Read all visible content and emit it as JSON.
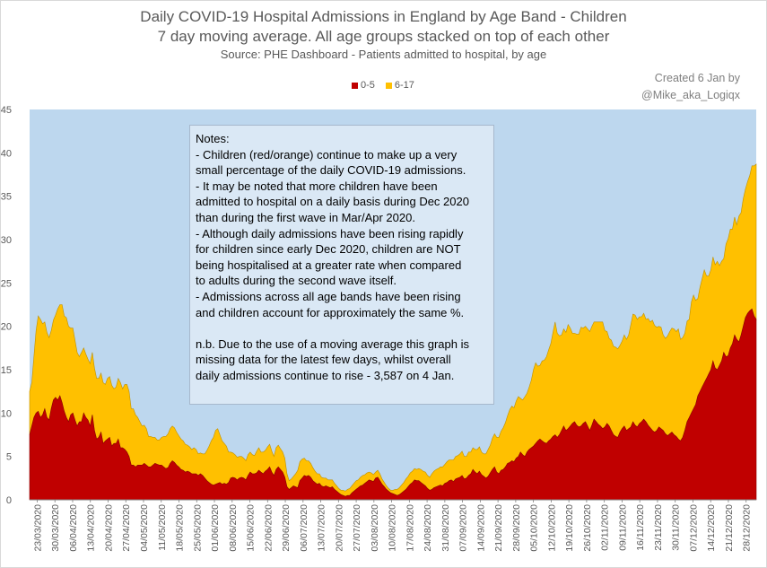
{
  "chart_data": {
    "type": "area",
    "stacked": true,
    "title": "Daily COVID-19 Hospital Admissions in England by Age Band - Children",
    "subtitle": "7 day moving average. All age groups stacked on top of each other",
    "source": "Source:  PHE Dashboard - Patients admitted to hospital, by age",
    "credit": [
      "Created 6 Jan by",
      "@Mike_aka_Logiqx"
    ],
    "ylim": [
      0,
      45
    ],
    "yticks": [
      "0",
      "5",
      "10",
      "15",
      "20",
      "25",
      "30",
      "35",
      "40",
      "45"
    ],
    "xticks": [
      "23/03/2020",
      "30/03/2020",
      "06/04/2020",
      "13/04/2020",
      "20/04/2020",
      "27/04/2020",
      "04/05/2020",
      "11/05/2020",
      "18/05/2020",
      "25/05/2020",
      "01/06/2020",
      "08/06/2020",
      "15/06/2020",
      "22/06/2020",
      "29/06/2020",
      "06/07/2020",
      "13/07/2020",
      "20/07/2020",
      "27/07/2020",
      "03/08/2020",
      "10/08/2020",
      "17/08/2020",
      "24/08/2020",
      "31/08/2020",
      "07/09/2020",
      "14/09/2020",
      "21/09/2020",
      "28/09/2020",
      "05/10/2020",
      "12/10/2020",
      "19/10/2020",
      "26/10/2020",
      "02/11/2020",
      "09/11/2020",
      "16/11/2020",
      "23/11/2020",
      "30/11/2020",
      "07/12/2020",
      "14/12/2020",
      "21/12/2020",
      "28/12/2020"
    ],
    "legend": [
      "0-5",
      "6-17"
    ],
    "legend_position": "top",
    "colors": {
      "0-5": "#c00000",
      "6-17": "#ffc000",
      "plot_bg": "#bdd7ee"
    },
    "x_start": "2020-03-20",
    "x_end": "2021-01-01",
    "series": [
      {
        "name": "0-5",
        "values": [
          7.5,
          8.5,
          9.5,
          10,
          10.2,
          9.5,
          9.8,
          10.5,
          9.5,
          9.2,
          10.5,
          11.5,
          11.8,
          11.5,
          12,
          11.2,
          10.2,
          9.5,
          9,
          9.8,
          10,
          9.2,
          8.5,
          9,
          9,
          10,
          9.5,
          9.2,
          8.5,
          9.8,
          8,
          7,
          7.2,
          7.8,
          6.5,
          6.8,
          7,
          7.2,
          6.2,
          6.5,
          6.5,
          7,
          6,
          6,
          5.8,
          5.5,
          5,
          4,
          4,
          3.8,
          4,
          4,
          4,
          4.2,
          4,
          3.8,
          3.8,
          4,
          4.2,
          4.1,
          4,
          4,
          3.8,
          3.6,
          3.7,
          4.2,
          4.5,
          4.3,
          4,
          3.8,
          3.5,
          3.4,
          3.2,
          3.3,
          3.2,
          3,
          3,
          3,
          2.8,
          3,
          2.8,
          2.5,
          2.2,
          2,
          1.8,
          1.7,
          1.8,
          1.9,
          2,
          1.8,
          1.9,
          1.8,
          2,
          2.5,
          2.6,
          2.5,
          2.3,
          2.5,
          2.6,
          2.5,
          2.3,
          2.8,
          3.2,
          3,
          3,
          3.1,
          3.4,
          3.2,
          3,
          3.3,
          3.5,
          3.8,
          3.2,
          2.8,
          3.5,
          3.8,
          3.5,
          3.2,
          2.6,
          1.5,
          1.2,
          1.4,
          1.6,
          1.5,
          1.4,
          2.2,
          2.5,
          2.8,
          2.7,
          2.8,
          2.6,
          2.2,
          2,
          1.8,
          1.9,
          1.6,
          1.5,
          1.6,
          1.5,
          1.4,
          1.5,
          1.2,
          1,
          0.8,
          0.6,
          0.5,
          0.4,
          0.5,
          0.5,
          0.8,
          1,
          1.2,
          1.4,
          1.6,
          1.7,
          1.9,
          2.1,
          2.3,
          2.2,
          2.1,
          2.5,
          2.6,
          2.2,
          1.8,
          1.5,
          1.2,
          1,
          0.8,
          0.7,
          0.6,
          0.5,
          0.6,
          0.8,
          1,
          1.2,
          1.5,
          1.8,
          2,
          2.3,
          2.2,
          2.2,
          2,
          1.8,
          1.6,
          1.3,
          1.1,
          1.2,
          1.4,
          1.5,
          1.6,
          1.7,
          1.6,
          1.9,
          2,
          2.2,
          2.3,
          2.1,
          2.4,
          2.5,
          2.6,
          2.8,
          2.4,
          2.5,
          2.8,
          3,
          3.5,
          3.2,
          3,
          3.3,
          2.9,
          2.7,
          2.5,
          2.7,
          3.1,
          3.5,
          3.8,
          3.2,
          3,
          3.4,
          3.5,
          3.8,
          4.2,
          4.3,
          4.5,
          4.4,
          4.8,
          5,
          5.5,
          5.2,
          5,
          5.5,
          5.8,
          6,
          6.2,
          6.5,
          6.8,
          7,
          6.8,
          6.6,
          6.5,
          6.8,
          7,
          7.3,
          7.5,
          7.2,
          7.5,
          8,
          8.5,
          8,
          8.2,
          8.5,
          8.8,
          9,
          8.6,
          8.4,
          8.5,
          8.8,
          9,
          8.5,
          8,
          8.6,
          9.3,
          9,
          8.7,
          8.5,
          8.2,
          8.4,
          8.8,
          8.5,
          8,
          7.5,
          7.3,
          7.2,
          7.8,
          8.2,
          8.5,
          8,
          8.2,
          8.4,
          9,
          8.6,
          8.4,
          8.8,
          9,
          9.3,
          9,
          8.6,
          8.3,
          8,
          7.8,
          8,
          8.4,
          8.2,
          8,
          7.6,
          7.4,
          7.6,
          7.8,
          7.5,
          7.3,
          7,
          6.8,
          7.2,
          8,
          9,
          9.5,
          10,
          10.5,
          11,
          12,
          12.5,
          13,
          13.5,
          14,
          14.5,
          15,
          16,
          15.2,
          15,
          15.5,
          16,
          17,
          16.5,
          16.6,
          17.5,
          18,
          19,
          18.5,
          18.2,
          19,
          20,
          21,
          21.5,
          21.8,
          22,
          21.2,
          20.8
        ]
      },
      {
        "name": "6-17",
        "values": [
          5,
          5,
          7,
          9.5,
          11,
          11.3,
          10.5,
          10,
          9.8,
          9.5,
          9,
          9.2,
          9.5,
          10.5,
          10.5,
          11.3,
          11,
          11.5,
          11,
          10,
          9.8,
          9.2,
          8.5,
          7.5,
          8,
          7.5,
          7.3,
          7,
          7.2,
          7.2,
          7.2,
          7,
          6.8,
          6.8,
          7,
          6.5,
          7,
          7,
          7,
          6.3,
          6.5,
          7,
          7.5,
          6.8,
          7.5,
          7.8,
          7.5,
          6.5,
          6.5,
          6,
          5.5,
          5,
          4.5,
          4.4,
          4.2,
          3.5,
          3.5,
          3.2,
          3,
          2.8,
          2.9,
          3.2,
          3.5,
          3.7,
          3.9,
          4,
          4,
          4,
          3.8,
          3.6,
          3.5,
          3.4,
          3.2,
          3,
          2.9,
          2.8,
          3,
          2.8,
          2.5,
          2.4,
          2.5,
          2.8,
          3.5,
          4.2,
          5,
          5.5,
          6.2,
          6.3,
          5.5,
          5,
          4.6,
          4.4,
          3.5,
          3,
          2.8,
          2.7,
          2.6,
          2.5,
          2.4,
          2.3,
          2.2,
          2.4,
          2.3,
          2.2,
          2.1,
          2.5,
          2.6,
          2.3,
          2.5,
          2.4,
          2.6,
          2.6,
          2.4,
          2.2,
          2.5,
          2.5,
          2.4,
          2.3,
          2.2,
          1.5,
          1,
          1,
          1.1,
          1.5,
          2,
          2.2,
          2.2,
          2,
          1.8,
          1.7,
          1.6,
          1.5,
          1.3,
          1.2,
          1.1,
          1,
          1,
          0.9,
          0.8,
          0.9,
          0.8,
          0.7,
          0.6,
          0.5,
          0.5,
          0.6,
          0.6,
          0.7,
          0.8,
          0.8,
          0.9,
          1,
          0.9,
          1,
          1.1,
          1,
          1,
          0.9,
          0.9,
          0.8,
          0.7,
          0.8,
          0.8,
          0.6,
          0.5,
          0.4,
          0.3,
          0.3,
          0.4,
          0.6,
          0.7,
          0.8,
          0.9,
          1,
          1.2,
          1.2,
          1.3,
          1.3,
          1.3,
          1.3,
          1.4,
          1.5,
          1.5,
          1.6,
          1.5,
          1.5,
          1.8,
          1.9,
          2,
          2,
          2.1,
          2.2,
          2.2,
          2.4,
          2.4,
          2.3,
          2.5,
          2.6,
          2.6,
          2.7,
          2.8,
          2.6,
          2.5,
          2.7,
          2.5,
          2.5,
          2.6,
          2.8,
          2.8,
          2.6,
          2.6,
          2.8,
          3.1,
          3.2,
          3.6,
          3.8,
          4,
          4.2,
          4.5,
          4.8,
          5.1,
          5.5,
          6.1,
          6.3,
          6.2,
          6.6,
          6.9,
          6.2,
          6.3,
          6.9,
          6.8,
          7.2,
          7.8,
          8.8,
          9.3,
          8.6,
          8.5,
          9.2,
          9.5,
          10,
          10.5,
          11,
          12,
          13,
          12,
          11.4,
          11,
          11.2,
          11.3,
          12,
          11.3,
          10.4,
          10.2,
          10.5,
          10.7,
          11.4,
          11,
          11,
          11.2,
          11.4,
          11.4,
          11.2,
          11.5,
          11.8,
          12,
          12.3,
          11.1,
          10.6,
          10.1,
          10.4,
          10.2,
          10.3,
          10.2,
          10,
          10.1,
          10.5,
          10.5,
          10.8,
          11.8,
          12.4,
          12.7,
          12.4,
          12.3,
          12.1,
          12.2,
          11.8,
          12.3,
          12.2,
          12.7,
          12.3,
          11.9,
          11.6,
          11.7,
          11,
          11,
          11.5,
          11.8,
          12,
          12.2,
          12.1,
          12.7,
          11.7,
          11.5,
          11.2,
          11.6,
          11.3,
          12.8,
          13.1,
          12,
          11.2,
          12,
          12.5,
          13,
          11.8,
          11.3,
          11.5,
          12,
          11.9,
          12.5,
          11.5,
          11.5,
          10.8,
          13,
          13.5,
          13.7,
          13.2,
          13.6,
          13.2,
          14.5,
          14.1,
          14.7,
          14.8,
          15.2,
          15.6,
          16.5,
          17.3,
          17.9,
          18.5
        ]
      }
    ]
  },
  "notes": [
    "Notes:",
    "- Children (red/orange) continue to make up a very",
    "small percentage of the daily COVID-19 admissions.",
    "- It may be noted that more children have been",
    "admitted to hospital on a daily basis during Dec 2020",
    "than during the first wave in Mar/Apr 2020.",
    "- Although daily admissions have been rising rapidly",
    "for children since early Dec 2020, children are NOT",
    "being hospitalised at a greater rate when compared",
    "to adults during the second wave itself.",
    "- Admissions across all age bands have been rising",
    "and children account for approximately the same %.",
    "",
    "n.b. Due to the use of a  moving average this graph is",
    "missing data for the latest few days, whilst overall",
    "daily admissions continue to rise - 3,587  on 4 Jan."
  ]
}
